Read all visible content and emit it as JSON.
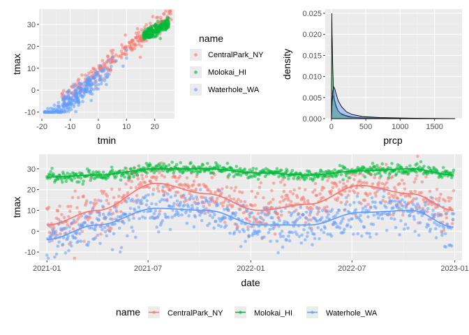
{
  "colors": {
    "panel_bg": "#ebebeb",
    "grid_major": "#ffffff",
    "grid_minor": "#f5f5f5",
    "CentralPark_NY": "#F8766D",
    "Molokai_HI": "#00BA38",
    "Waterhole_WA": "#619CFF"
  },
  "legend_top": {
    "title": "name",
    "items": [
      "CentralPark_NY",
      "Molokai_HI",
      "Waterhole_WA"
    ]
  },
  "legend_bottom": {
    "title": "name",
    "items": [
      "CentralPark_NY",
      "Molokai_HI",
      "Waterhole_WA"
    ]
  },
  "chart_data": [
    {
      "id": "scatter",
      "type": "scatter",
      "title": "",
      "xlabel": "tmin",
      "ylabel": "tmax",
      "xlim": [
        -21,
        27
      ],
      "ylim": [
        -13,
        37
      ],
      "xticks": [
        -20,
        -10,
        0,
        10,
        20
      ],
      "yticks": [
        -10,
        0,
        10,
        20,
        30
      ],
      "xtick_labels": [
        "-20",
        "-10",
        "0",
        "10",
        "20"
      ],
      "ytick_labels": [
        "-10",
        "0",
        "10",
        "20",
        "30"
      ],
      "grid": true,
      "legend": "right",
      "series": [
        {
          "name": "CentralPark_NY",
          "tmin_range": [
            -13,
            26
          ],
          "tmax_range": [
            -7,
            36
          ]
        },
        {
          "name": "Molokai_HI",
          "tmin_range": [
            16,
            25
          ],
          "tmax_range": [
            23,
            33
          ]
        },
        {
          "name": "Waterhole_WA",
          "tmin_range": [
            -19,
            18
          ],
          "tmax_range": [
            -10,
            33
          ]
        }
      ]
    },
    {
      "id": "density",
      "type": "area",
      "title": "",
      "xlabel": "prcp",
      "ylabel": "density",
      "xlim": [
        -90,
        1900
      ],
      "ylim": [
        0,
        0.026
      ],
      "xticks": [
        0,
        500,
        1000,
        1500
      ],
      "yticks": [
        0,
        0.005,
        0.01,
        0.015,
        0.02,
        0.025
      ],
      "xtick_labels": [
        "0",
        "500",
        "1000",
        "1500"
      ],
      "ytick_labels": [
        "0.000",
        "0.005",
        "0.010",
        "0.015",
        "0.020",
        "0.025"
      ],
      "grid": true,
      "series": [
        {
          "name": "CentralPark_NY",
          "x": [
            0,
            10,
            25,
            40,
            60,
            90,
            130,
            200,
            300,
            450,
            700,
            1000,
            1200
          ],
          "y": [
            0.0,
            0.004,
            0.0055,
            0.0045,
            0.003,
            0.002,
            0.0013,
            0.0008,
            0.0004,
            0.0002,
            0.0001,
            5e-05,
            0.0
          ]
        },
        {
          "name": "Molokai_HI",
          "x": [
            0,
            5,
            10,
            20,
            30,
            45,
            70,
            100,
            150,
            250,
            400,
            600,
            800
          ],
          "y": [
            0.0,
            0.025,
            0.02,
            0.012,
            0.0068,
            0.0045,
            0.003,
            0.0018,
            0.001,
            0.0004,
            0.0002,
            0.0001,
            0.0
          ]
        },
        {
          "name": "Waterhole_WA",
          "x": [
            0,
            10,
            20,
            35,
            50,
            70,
            100,
            150,
            220,
            300,
            450,
            700,
            1000,
            1200,
            1500,
            1800
          ],
          "y": [
            0.0,
            0.004,
            0.0065,
            0.0075,
            0.007,
            0.0058,
            0.0042,
            0.0028,
            0.0016,
            0.001,
            0.0005,
            0.00025,
            0.00015,
            0.0001,
            5e-05,
            0.0
          ]
        }
      ]
    },
    {
      "id": "timeseries",
      "type": "line",
      "title": "",
      "xlabel": "date",
      "ylabel": "tmax",
      "xlim": [
        "2020-12-18",
        "2023-01-14"
      ],
      "ylim": [
        -14,
        37
      ],
      "xticks": [
        "2021-01-01",
        "2021-07-01",
        "2022-01-01",
        "2022-07-01",
        "2023-01-01"
      ],
      "xtick_labels": [
        "2021-01",
        "2021-07",
        "2022-01",
        "2022-07",
        "2023-01"
      ],
      "yticks": [
        -10,
        0,
        10,
        20,
        30
      ],
      "ytick_labels": [
        "-10",
        "0",
        "10",
        "20",
        "30"
      ],
      "grid": true,
      "legend": "bottom",
      "series": [
        {
          "name": "CentralPark_NY",
          "x": [
            "2021-01-01",
            "2021-04-01",
            "2021-07-15",
            "2021-10-15",
            "2022-01-15",
            "2022-04-15",
            "2022-07-15",
            "2022-10-15",
            "2022-12-31"
          ],
          "y": [
            3,
            10,
            23,
            18,
            10,
            13,
            22,
            18,
            10
          ]
        },
        {
          "name": "Molokai_HI",
          "x": [
            "2021-01-01",
            "2021-04-01",
            "2021-07-15",
            "2021-10-15",
            "2022-01-15",
            "2022-04-15",
            "2022-07-15",
            "2022-10-15",
            "2022-12-31"
          ],
          "y": [
            26,
            27,
            30,
            30,
            28,
            27,
            29,
            30,
            27
          ]
        },
        {
          "name": "Waterhole_WA",
          "x": [
            "2021-01-01",
            "2021-04-01",
            "2021-07-15",
            "2021-10-15",
            "2022-01-15",
            "2022-04-15",
            "2022-07-15",
            "2022-10-15",
            "2022-12-31"
          ],
          "y": [
            -4,
            3,
            11,
            10,
            3,
            3,
            9,
            10,
            2
          ]
        }
      ]
    }
  ]
}
